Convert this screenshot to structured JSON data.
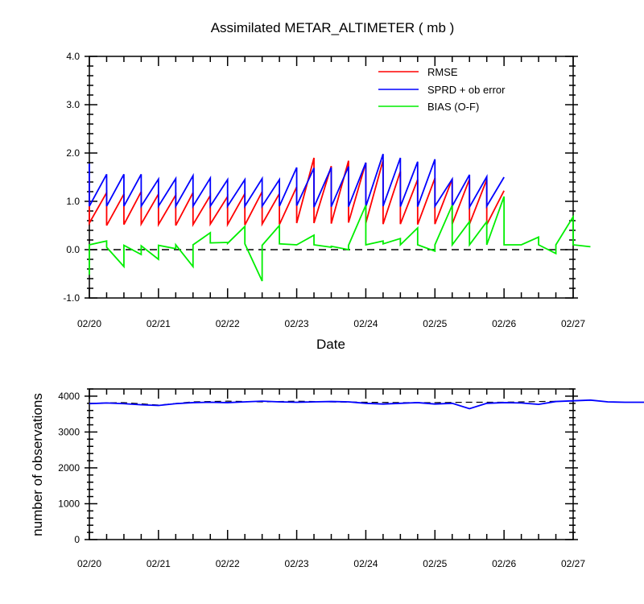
{
  "chart_data": [
    {
      "type": "line",
      "title": "Assimilated METAR_ALTIMETER ( mb )",
      "xlabel": "Date",
      "ylabel": "",
      "ylim": [
        -1.0,
        4.0
      ],
      "yticks": [
        "-1.0",
        "0.0",
        "1.0",
        "2.0",
        "3.0",
        "4.0"
      ],
      "xticks": [
        "02/20",
        "02/21",
        "02/22",
        "02/23",
        "02/24",
        "02/25",
        "02/26",
        "02/27"
      ],
      "legend": {
        "placement": "top-right",
        "entries": [
          "RMSE",
          "SPRD + ob error",
          "BIAS (O-F)"
        ]
      },
      "reference_line": {
        "y": 0.0,
        "style": "dashed"
      },
      "series": [
        {
          "name": "RMSE",
          "color": "#ff0000",
          "points": [
            [
              0.0,
              1.5
            ],
            [
              0.0,
              0.55
            ],
            [
              0.5,
              1.18
            ],
            [
              0.5,
              0.5
            ],
            [
              1.0,
              1.15
            ],
            [
              1.0,
              0.52
            ],
            [
              1.5,
              1.2
            ],
            [
              1.5,
              0.53
            ],
            [
              2.0,
              1.15
            ],
            [
              2.0,
              0.52
            ],
            [
              2.5,
              1.13
            ],
            [
              2.5,
              0.5
            ],
            [
              3.0,
              1.18
            ],
            [
              3.0,
              0.52
            ],
            [
              3.5,
              1.12
            ],
            [
              3.5,
              0.53
            ],
            [
              4.0,
              1.1
            ],
            [
              4.0,
              0.52
            ],
            [
              4.5,
              1.16
            ],
            [
              4.5,
              0.51
            ],
            [
              5.0,
              1.2
            ],
            [
              5.0,
              0.53
            ],
            [
              5.5,
              1.16
            ],
            [
              5.5,
              0.52
            ],
            [
              6.0,
              1.3
            ],
            [
              6.0,
              0.55
            ],
            [
              6.5,
              1.9
            ],
            [
              6.5,
              0.55
            ],
            [
              7.0,
              1.73
            ],
            [
              7.0,
              0.54
            ],
            [
              7.5,
              1.84
            ],
            [
              7.5,
              0.56
            ],
            [
              8.0,
              1.8
            ],
            [
              8.0,
              0.55
            ],
            [
              8.5,
              1.85
            ],
            [
              8.5,
              0.53
            ],
            [
              9.0,
              1.62
            ],
            [
              9.0,
              0.53
            ],
            [
              9.5,
              1.45
            ],
            [
              9.5,
              0.52
            ],
            [
              10.0,
              1.48
            ],
            [
              10.0,
              0.53
            ],
            [
              10.5,
              1.46
            ],
            [
              10.5,
              0.53
            ],
            [
              11.0,
              1.46
            ],
            [
              11.0,
              0.53
            ],
            [
              11.5,
              1.45
            ],
            [
              11.5,
              0.52
            ],
            [
              12.0,
              1.22
            ]
          ]
        },
        {
          "name": "SPRD + ob error",
          "color": "#0000ff",
          "points": [
            [
              0.0,
              1.78
            ],
            [
              0.0,
              0.9
            ],
            [
              0.5,
              1.56
            ],
            [
              0.5,
              0.9
            ],
            [
              1.0,
              1.56
            ],
            [
              1.0,
              0.9
            ],
            [
              1.5,
              1.56
            ],
            [
              1.5,
              0.9
            ],
            [
              2.0,
              1.46
            ],
            [
              2.0,
              0.9
            ],
            [
              2.5,
              1.47
            ],
            [
              2.5,
              0.9
            ],
            [
              3.0,
              1.53
            ],
            [
              3.0,
              0.9
            ],
            [
              3.5,
              1.48
            ],
            [
              3.5,
              0.9
            ],
            [
              4.0,
              1.45
            ],
            [
              4.0,
              0.9
            ],
            [
              4.5,
              1.45
            ],
            [
              4.5,
              0.9
            ],
            [
              5.0,
              1.47
            ],
            [
              5.0,
              0.9
            ],
            [
              5.5,
              1.45
            ],
            [
              5.5,
              0.9
            ],
            [
              6.0,
              1.7
            ],
            [
              6.0,
              0.91
            ],
            [
              6.5,
              1.69
            ],
            [
              6.5,
              0.88
            ],
            [
              7.0,
              1.7
            ],
            [
              7.0,
              0.89
            ],
            [
              7.5,
              1.72
            ],
            [
              7.5,
              0.89
            ],
            [
              8.0,
              1.8
            ],
            [
              8.0,
              0.89
            ],
            [
              8.5,
              1.98
            ],
            [
              8.5,
              0.9
            ],
            [
              9.0,
              1.9
            ],
            [
              9.0,
              0.89
            ],
            [
              9.5,
              1.82
            ],
            [
              9.5,
              0.89
            ],
            [
              10.0,
              1.87
            ],
            [
              10.0,
              0.9
            ],
            [
              10.5,
              1.46
            ],
            [
              10.5,
              0.9
            ],
            [
              11.0,
              1.55
            ],
            [
              11.0,
              0.88
            ],
            [
              11.5,
              1.51
            ],
            [
              11.5,
              0.9
            ],
            [
              12.0,
              1.5
            ]
          ]
        },
        {
          "name": "BIAS (O-F)",
          "color": "#00ee00",
          "points": [
            [
              0.0,
              -0.52
            ],
            [
              0.0,
              0.1
            ],
            [
              0.5,
              0.18
            ],
            [
              0.5,
              0.05
            ],
            [
              1.0,
              -0.35
            ],
            [
              1.0,
              0.09
            ],
            [
              1.5,
              -0.1
            ],
            [
              1.5,
              0.08
            ],
            [
              2.0,
              -0.2
            ],
            [
              2.0,
              0.09
            ],
            [
              2.5,
              0.02
            ],
            [
              2.5,
              0.1
            ],
            [
              3.0,
              -0.35
            ],
            [
              3.0,
              0.1
            ],
            [
              3.5,
              0.35
            ],
            [
              3.5,
              0.14
            ],
            [
              4.0,
              0.15
            ],
            [
              4.0,
              0.13
            ],
            [
              4.5,
              0.48
            ],
            [
              4.5,
              0.12
            ],
            [
              5.0,
              -0.65
            ],
            [
              5.0,
              0.09
            ],
            [
              5.5,
              0.5
            ],
            [
              5.5,
              0.12
            ],
            [
              6.0,
              0.1
            ],
            [
              6.0,
              0.1
            ],
            [
              6.5,
              0.3
            ],
            [
              6.5,
              0.1
            ],
            [
              7.0,
              0.05
            ],
            [
              7.0,
              0.07
            ],
            [
              7.5,
              0.0
            ],
            [
              7.5,
              0.09
            ],
            [
              8.0,
              0.92
            ],
            [
              8.0,
              0.1
            ],
            [
              8.5,
              0.18
            ],
            [
              8.5,
              0.12
            ],
            [
              9.0,
              0.23
            ],
            [
              9.0,
              0.1
            ],
            [
              9.5,
              0.45
            ],
            [
              9.5,
              0.1
            ],
            [
              10.0,
              -0.03
            ],
            [
              10.0,
              0.1
            ],
            [
              10.5,
              0.92
            ],
            [
              10.5,
              0.1
            ],
            [
              11.0,
              0.58
            ],
            [
              11.0,
              0.1
            ],
            [
              11.5,
              0.58
            ],
            [
              11.5,
              0.1
            ],
            [
              12.0,
              1.1
            ],
            [
              12.0,
              0.1
            ],
            [
              12.5,
              0.1
            ],
            [
              13.0,
              0.26
            ],
            [
              13.0,
              0.1
            ],
            [
              13.5,
              -0.08
            ],
            [
              13.5,
              0.1
            ],
            [
              14.0,
              0.68
            ],
            [
              14.0,
              0.1
            ],
            [
              14.5,
              0.06
            ]
          ]
        }
      ]
    },
    {
      "type": "line",
      "title": "",
      "xlabel": "",
      "ylabel": "number of observations",
      "ylim": [
        0,
        4200
      ],
      "yticks": [
        "0",
        "1000",
        "2000",
        "3000",
        "4000"
      ],
      "xticks": [
        "02/20",
        "02/21",
        "02/22",
        "02/23",
        "02/24",
        "02/25",
        "02/26",
        "02/27"
      ],
      "series": [
        {
          "name": "",
          "style": "dashed",
          "color": "#000000",
          "points": [
            [
              0.0,
              3800
            ],
            [
              1.0,
              3820
            ],
            [
              2.0,
              3750
            ],
            [
              3.0,
              3840
            ],
            [
              4.0,
              3860
            ],
            [
              5.0,
              3840
            ],
            [
              6.0,
              3860
            ],
            [
              7.0,
              3840
            ],
            [
              8.0,
              3830
            ],
            [
              9.0,
              3820
            ],
            [
              10.0,
              3820
            ],
            [
              11.0,
              3830
            ],
            [
              12.0,
              3830
            ],
            [
              13.0,
              3850
            ],
            [
              14.0,
              3860
            ]
          ]
        },
        {
          "name": "",
          "color": "#0000ff",
          "points": [
            [
              0.0,
              3790
            ],
            [
              0.5,
              3810
            ],
            [
              1.0,
              3790
            ],
            [
              1.5,
              3760
            ],
            [
              2.0,
              3740
            ],
            [
              2.5,
              3790
            ],
            [
              3.0,
              3820
            ],
            [
              3.5,
              3830
            ],
            [
              4.0,
              3820
            ],
            [
              4.5,
              3840
            ],
            [
              5.0,
              3860
            ],
            [
              5.5,
              3840
            ],
            [
              6.0,
              3830
            ],
            [
              6.5,
              3840
            ],
            [
              7.0,
              3850
            ],
            [
              7.5,
              3840
            ],
            [
              8.0,
              3800
            ],
            [
              8.5,
              3780
            ],
            [
              9.0,
              3800
            ],
            [
              9.5,
              3820
            ],
            [
              10.0,
              3780
            ],
            [
              10.5,
              3800
            ],
            [
              11.0,
              3650
            ],
            [
              11.5,
              3800
            ],
            [
              12.0,
              3820
            ],
            [
              12.5,
              3810
            ],
            [
              13.0,
              3770
            ],
            [
              13.5,
              3850
            ],
            [
              14.0,
              3870
            ],
            [
              14.5,
              3890
            ],
            [
              15.0,
              3840
            ],
            [
              15.5,
              3830
            ],
            [
              16.0,
              3830
            ],
            [
              16.5,
              3820
            ],
            [
              17.0,
              3830
            ],
            [
              17.5,
              3840
            ]
          ]
        }
      ]
    }
  ]
}
